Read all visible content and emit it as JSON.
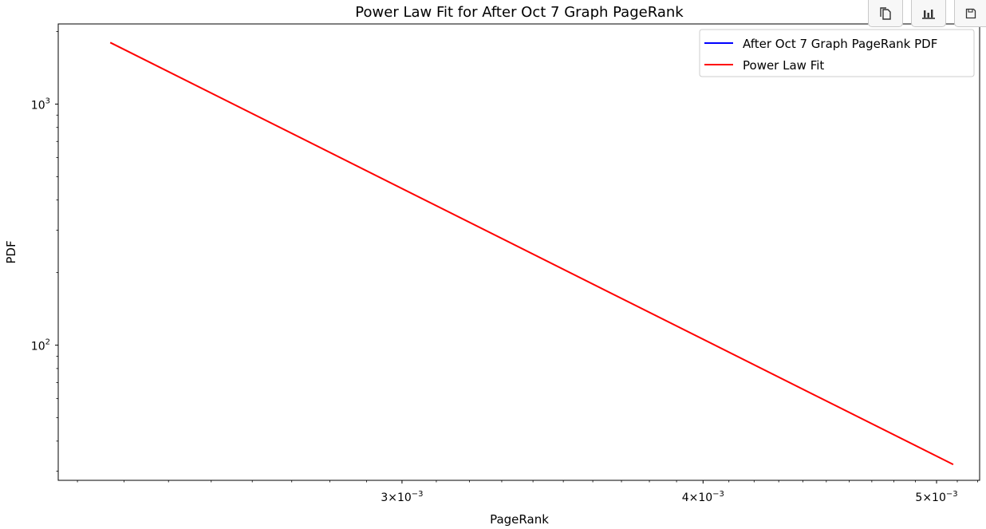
{
  "toolbar": {
    "buttons": [
      {
        "icon": "copy-icon"
      },
      {
        "icon": "bar-chart-icon"
      },
      {
        "icon": "save-icon"
      }
    ]
  },
  "chart_data": {
    "type": "line",
    "title": "Power Law Fit for After Oct 7 Graph PageRank",
    "xlabel": "PageRank",
    "ylabel": "PDF",
    "xscale": "log",
    "yscale": "log",
    "xlim": [
      0.00216,
      0.00521
    ],
    "ylim": [
      27.5,
      2150
    ],
    "x_ticks": [
      {
        "value": 0.003,
        "mantissa": "3",
        "exp": "−3"
      },
      {
        "value": 0.004,
        "mantissa": "4",
        "exp": "−3"
      },
      {
        "value": 0.005,
        "mantissa": "5",
        "exp": "−3"
      }
    ],
    "y_ticks": [
      {
        "value": 100,
        "exp": "2"
      },
      {
        "value": 1000,
        "exp": "3"
      }
    ],
    "series": [
      {
        "name": "After Oct 7 Graph PageRank PDF",
        "color": "#0000ff",
        "x": [],
        "y": []
      },
      {
        "name": "Power Law Fit",
        "color": "#ff0000",
        "x": [
          0.00227,
          0.00508
        ],
        "y": [
          1800,
          32
        ]
      }
    ],
    "legend_position": "top-right",
    "grid": false
  }
}
